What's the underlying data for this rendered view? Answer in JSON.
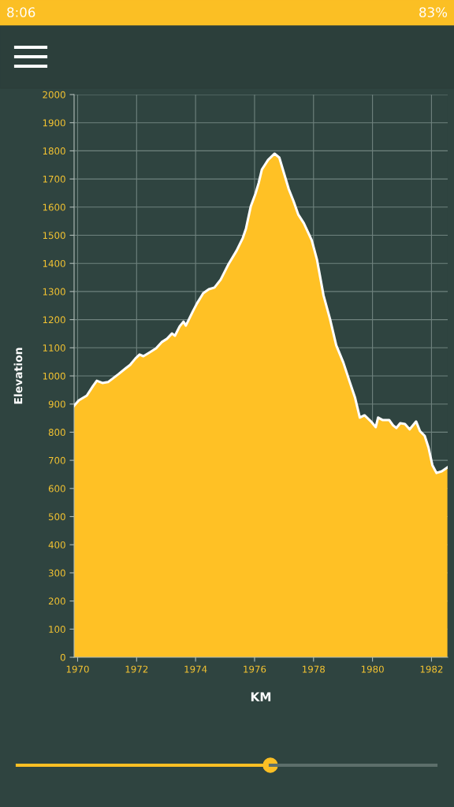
{
  "chart_data": {
    "type": "area",
    "xlabel": "KM",
    "ylabel": "Elevation",
    "color": "#ffc125",
    "grid": true,
    "annotations": [
      "8:06",
      "83%"
    ],
    "xlim": [
      1969.88,
      1982.55
    ],
    "xticks": [
      1970,
      1972,
      1974,
      1976,
      1978,
      1980,
      1982
    ],
    "ylim": [
      0,
      2000
    ],
    "yticks": [
      0,
      100,
      200,
      300,
      400,
      500,
      600,
      700,
      800,
      900,
      1000,
      1100,
      1200,
      1300,
      1400,
      1500,
      1600,
      1700,
      1800,
      1900,
      2000
    ],
    "x": [
      1969.88,
      1970.04,
      1970.31,
      1970.52,
      1970.65,
      1970.84,
      1971.03,
      1971.38,
      1971.64,
      1971.78,
      1971.96,
      1972.1,
      1972.23,
      1972.45,
      1972.66,
      1972.85,
      1973.03,
      1973.2,
      1973.3,
      1973.46,
      1973.59,
      1973.67,
      1973.91,
      1974.05,
      1974.26,
      1974.45,
      1974.64,
      1974.85,
      1975.12,
      1975.39,
      1975.6,
      1975.71,
      1975.87,
      1976.03,
      1976.14,
      1976.25,
      1976.46,
      1976.68,
      1976.84,
      1977.0,
      1977.16,
      1977.32,
      1977.48,
      1977.67,
      1977.94,
      1978.12,
      1978.34,
      1978.56,
      1978.77,
      1979.01,
      1979.23,
      1979.41,
      1979.57,
      1979.73,
      1979.95,
      1980.11,
      1980.19,
      1980.35,
      1980.57,
      1980.7,
      1980.81,
      1980.94,
      1981.1,
      1981.26,
      1981.48,
      1981.61,
      1981.77,
      1981.9,
      1982.03,
      1982.17,
      1982.35,
      1982.54
    ],
    "values": [
      894,
      913,
      930,
      964,
      983,
      975,
      978,
      1006,
      1028,
      1039,
      1062,
      1076,
      1070,
      1084,
      1098,
      1120,
      1132,
      1151,
      1143,
      1176,
      1193,
      1179,
      1230,
      1258,
      1294,
      1308,
      1314,
      1342,
      1398,
      1445,
      1490,
      1524,
      1602,
      1647,
      1686,
      1734,
      1768,
      1790,
      1776,
      1720,
      1664,
      1622,
      1574,
      1543,
      1482,
      1412,
      1286,
      1202,
      1109,
      1048,
      978,
      922,
      852,
      860,
      838,
      818,
      852,
      843,
      843,
      824,
      815,
      832,
      829,
      810,
      838,
      804,
      787,
      745,
      683,
      655,
      661,
      675
    ]
  }
}
